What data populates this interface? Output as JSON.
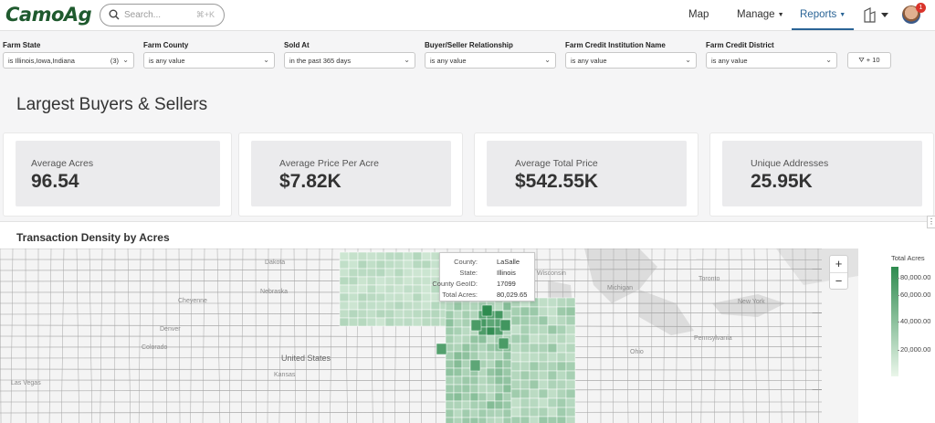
{
  "header": {
    "logo": "CamoAg",
    "search": {
      "placeholder": "Search...",
      "shortcut": "⌘+K"
    },
    "nav": [
      {
        "label": "Map"
      },
      {
        "label": "Manage"
      },
      {
        "label": "Reports"
      }
    ],
    "notifications": "1"
  },
  "filters": [
    {
      "label": "Farm State",
      "value": "is Illinois,Iowa,Indiana",
      "count": "(3)"
    },
    {
      "label": "Farm County",
      "value": "is any value"
    },
    {
      "label": "Sold At",
      "value": "in the past 365 days"
    },
    {
      "label": "Buyer/Seller Relationship",
      "value": "is any value"
    },
    {
      "label": "Farm Credit Institution Name",
      "value": "is any value"
    },
    {
      "label": "Farm Credit District",
      "value": "is any value"
    }
  ],
  "more_filters": "+ 10",
  "page_title": "Largest Buyers & Sellers",
  "kpis": [
    {
      "label": "Average Acres",
      "value": "96.54"
    },
    {
      "label": "Average Price Per Acre",
      "value": "$7.82K"
    },
    {
      "label": "Average Total Price",
      "value": "$542.55K"
    },
    {
      "label": "Unique Addresses",
      "value": "25.95K"
    }
  ],
  "map": {
    "title": "Transaction Density by Acres",
    "tooltip": [
      {
        "key": "County:",
        "value": "LaSalle"
      },
      {
        "key": "State:",
        "value": "Illinois"
      },
      {
        "key": "County GeoID:",
        "value": "17099"
      },
      {
        "key": "Total Acres:",
        "value": "80,029.65"
      }
    ],
    "legend": {
      "title": "Total Acres",
      "ticks": [
        "80,000.00",
        "60,000.00",
        "40,000.00",
        "20,000.00"
      ]
    },
    "places": {
      "country": "United States",
      "cities": [
        "Cheyenne",
        "Denver",
        "Colorado",
        "Nebraska",
        "Kansas",
        "Las Vegas",
        "Wisconsin",
        "Michigan",
        "Toronto",
        "New York",
        "Pennsylvania",
        "Ohio",
        "Dakota"
      ]
    },
    "color_scale": {
      "high": "#2e8b4f",
      "low": "#eaf6ea"
    }
  }
}
